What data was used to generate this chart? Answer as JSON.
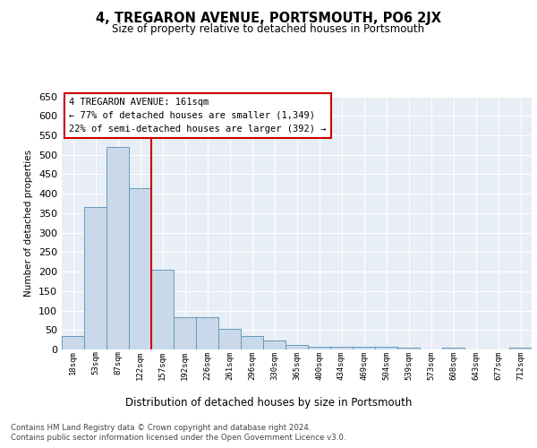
{
  "title": "4, TREGARON AVENUE, PORTSMOUTH, PO6 2JX",
  "subtitle": "Size of property relative to detached houses in Portsmouth",
  "xlabel": "Distribution of detached houses by size in Portsmouth",
  "ylabel": "Number of detached properties",
  "bar_color": "#c9d9ea",
  "bar_edge_color": "#6699bb",
  "background_color": "#ffffff",
  "plot_bg_color": "#e8eef5",
  "grid_color": "#ffffff",
  "annotation_box_color": "#cc0000",
  "annotation_line_color": "#cc0000",
  "categories": [
    "18sqm",
    "53sqm",
    "87sqm",
    "122sqm",
    "157sqm",
    "192sqm",
    "226sqm",
    "261sqm",
    "296sqm",
    "330sqm",
    "365sqm",
    "400sqm",
    "434sqm",
    "469sqm",
    "504sqm",
    "539sqm",
    "573sqm",
    "608sqm",
    "643sqm",
    "677sqm",
    "712sqm"
  ],
  "values": [
    35,
    365,
    520,
    414,
    205,
    83,
    83,
    54,
    35,
    22,
    12,
    8,
    8,
    8,
    8,
    4,
    0,
    4,
    0,
    0,
    4
  ],
  "annotation_title": "4 TREGARON AVENUE: 161sqm",
  "annotation_line1": "← 77% of detached houses are smaller (1,349)",
  "annotation_line2": "22% of semi-detached houses are larger (392) →",
  "footer_line1": "Contains HM Land Registry data © Crown copyright and database right 2024.",
  "footer_line2": "Contains public sector information licensed under the Open Government Licence v3.0.",
  "ylim": [
    0,
    650
  ],
  "yticks": [
    0,
    50,
    100,
    150,
    200,
    250,
    300,
    350,
    400,
    450,
    500,
    550,
    600,
    650
  ],
  "red_line_x": 3.5
}
